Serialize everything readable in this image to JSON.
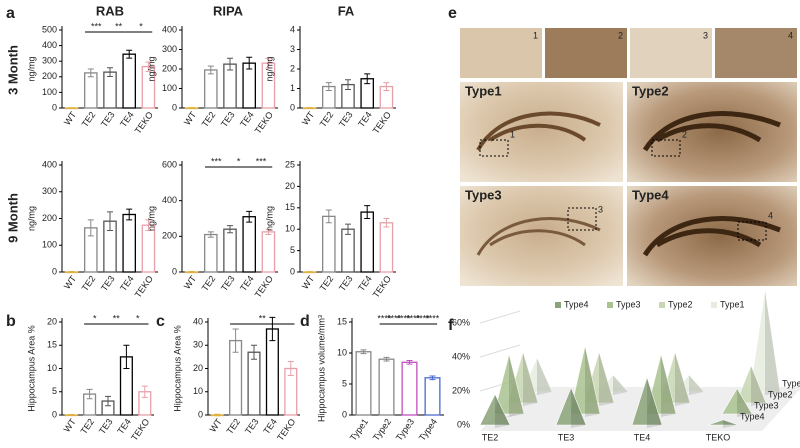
{
  "panel_labels": [
    "a",
    "b",
    "c",
    "d",
    "e",
    "f"
  ],
  "column_headers": [
    "RAB",
    "RIPA",
    "FA"
  ],
  "row_labels": [
    "3 Month",
    "9 Month"
  ],
  "images": {
    "insets": [
      "1",
      "2",
      "3",
      "4"
    ],
    "panels": [
      {
        "title": "Type1",
        "marker": "1"
      },
      {
        "title": "Type2",
        "marker": "2"
      },
      {
        "title": "Type3",
        "marker": "3"
      },
      {
        "title": "Type4",
        "marker": "4"
      }
    ]
  },
  "chart_data": [
    {
      "type": "bar",
      "ylabel": "ng/mg",
      "categories": [
        "WT",
        "TE2",
        "TE3",
        "TE4",
        "TEKO"
      ],
      "values": [
        0,
        225,
        230,
        345,
        265
      ],
      "errors": [
        2,
        25,
        28,
        25,
        30
      ],
      "colors": [
        "#e0b040",
        "#888888",
        "#555555",
        "#000000",
        "#e8a0a8"
      ],
      "ylim": [
        0,
        500
      ],
      "yticks": [
        0,
        100,
        200,
        300,
        400,
        500
      ],
      "significance": [
        "***",
        "**",
        "*"
      ]
    },
    {
      "type": "bar",
      "ylabel": "ng/mg",
      "categories": [
        "WT",
        "TE2",
        "TE3",
        "TE4",
        "TEKO"
      ],
      "values": [
        0,
        195,
        225,
        230,
        230
      ],
      "errors": [
        2,
        20,
        30,
        30,
        25
      ],
      "colors": [
        "#e0b040",
        "#888888",
        "#555555",
        "#000000",
        "#e8a0a8"
      ],
      "ylim": [
        0,
        400
      ],
      "yticks": [
        0,
        100,
        200,
        300,
        400
      ],
      "significance": []
    },
    {
      "type": "bar",
      "ylabel": "ng/mg",
      "categories": [
        "WT",
        "TE2",
        "TE3",
        "TE4",
        "TEKO"
      ],
      "values": [
        0,
        1.1,
        1.2,
        1.5,
        1.1
      ],
      "errors": [
        0.02,
        0.2,
        0.25,
        0.25,
        0.2
      ],
      "colors": [
        "#e0b040",
        "#888888",
        "#555555",
        "#000000",
        "#e8a0a8"
      ],
      "ylim": [
        0,
        4
      ],
      "yticks": [
        0,
        1,
        2,
        3,
        4
      ],
      "significance": []
    },
    {
      "type": "bar",
      "ylabel": "ng/mg",
      "categories": [
        "WT",
        "TE2",
        "TE3",
        "TE4",
        "TEKO"
      ],
      "values": [
        0,
        165,
        190,
        215,
        175
      ],
      "errors": [
        2,
        30,
        35,
        20,
        20
      ],
      "colors": [
        "#e0b040",
        "#888888",
        "#555555",
        "#000000",
        "#e8a0a8"
      ],
      "ylim": [
        0,
        400
      ],
      "yticks": [
        0,
        100,
        200,
        300,
        400
      ],
      "significance": []
    },
    {
      "type": "bar",
      "ylabel": "ng/mg",
      "categories": [
        "WT",
        "TE2",
        "TE3",
        "TE4",
        "TEKO"
      ],
      "values": [
        0,
        210,
        240,
        310,
        225
      ],
      "errors": [
        3,
        15,
        20,
        30,
        15
      ],
      "colors": [
        "#e0b040",
        "#888888",
        "#555555",
        "#000000",
        "#e8a0a8"
      ],
      "ylim": [
        0,
        600
      ],
      "yticks": [
        0,
        200,
        400,
        600
      ],
      "significance": [
        "***",
        "*",
        "***"
      ]
    },
    {
      "type": "bar",
      "ylabel": "ng/mg",
      "categories": [
        "WT",
        "TE2",
        "TE3",
        "TE4",
        "TEKO"
      ],
      "values": [
        0,
        13,
        10,
        14,
        11.5
      ],
      "errors": [
        0.1,
        1.5,
        1.2,
        1.5,
        1
      ],
      "colors": [
        "#e0b040",
        "#888888",
        "#555555",
        "#000000",
        "#e8a0a8"
      ],
      "ylim": [
        0,
        25
      ],
      "yticks": [
        0,
        5,
        10,
        15,
        20,
        25
      ],
      "significance": []
    },
    {
      "type": "bar",
      "ylabel": "Hippocampus Area %",
      "categories": [
        "WT",
        "TE2",
        "TE3",
        "TE4",
        "TEKO"
      ],
      "values": [
        0,
        4.5,
        3,
        12.5,
        5
      ],
      "errors": [
        0.1,
        1,
        1,
        2.5,
        1.2
      ],
      "colors": [
        "#e0b040",
        "#888888",
        "#555555",
        "#000000",
        "#e8a0a8"
      ],
      "ylim": [
        0,
        20
      ],
      "yticks": [
        0,
        5,
        10,
        15,
        20
      ],
      "significance": [
        "*",
        "**",
        "*"
      ]
    },
    {
      "type": "bar",
      "ylabel": "Hippocampus Area %",
      "categories": [
        "WT",
        "TE2",
        "TE3",
        "TE4",
        "TEKO"
      ],
      "values": [
        0,
        32,
        27,
        37,
        20
      ],
      "errors": [
        0.3,
        5,
        3,
        5,
        3
      ],
      "colors": [
        "#e0b040",
        "#888888",
        "#555555",
        "#000000",
        "#e8a0a8"
      ],
      "ylim": [
        0,
        40
      ],
      "yticks": [
        0,
        10,
        20,
        30,
        40
      ],
      "significance": [
        "**"
      ]
    },
    {
      "type": "bar",
      "ylabel": "Hippocampus volume/mm³",
      "categories": [
        "Type1",
        "Type2",
        "Type3",
        "Type4"
      ],
      "values": [
        10.2,
        9,
        8.5,
        6
      ],
      "errors": [
        0.3,
        0.3,
        0.3,
        0.3
      ],
      "colors": [
        "#888888",
        "#888888",
        "#c050c0",
        "#4a6ad0"
      ],
      "ylim": [
        0,
        15
      ],
      "yticks": [
        0,
        5,
        10,
        15
      ],
      "significance": [
        "****",
        "****",
        "****",
        "****",
        "****",
        "****"
      ]
    },
    {
      "type": "pyramid3d",
      "categories": [
        "TE2",
        "TE3",
        "TE4",
        "TEKO"
      ],
      "series": [
        {
          "name": "Type4",
          "color": "#8aa37a",
          "values": [
            18,
            22,
            28,
            3
          ]
        },
        {
          "name": "Type3",
          "color": "#a9c28e",
          "values": [
            35,
            40,
            35,
            15
          ]
        },
        {
          "name": "Type2",
          "color": "#c8d6b3",
          "values": [
            30,
            30,
            30,
            22
          ]
        },
        {
          "name": "Type1",
          "color": "#e6ecde",
          "values": [
            20,
            10,
            10,
            60
          ]
        }
      ],
      "ylim": [
        0,
        60
      ],
      "yticks": [
        {
          "value": 0,
          "label": "0%"
        },
        {
          "value": 20,
          "label": "20%"
        },
        {
          "value": 40,
          "label": "40%"
        },
        {
          "value": 60,
          "label": "60%"
        }
      ]
    }
  ]
}
